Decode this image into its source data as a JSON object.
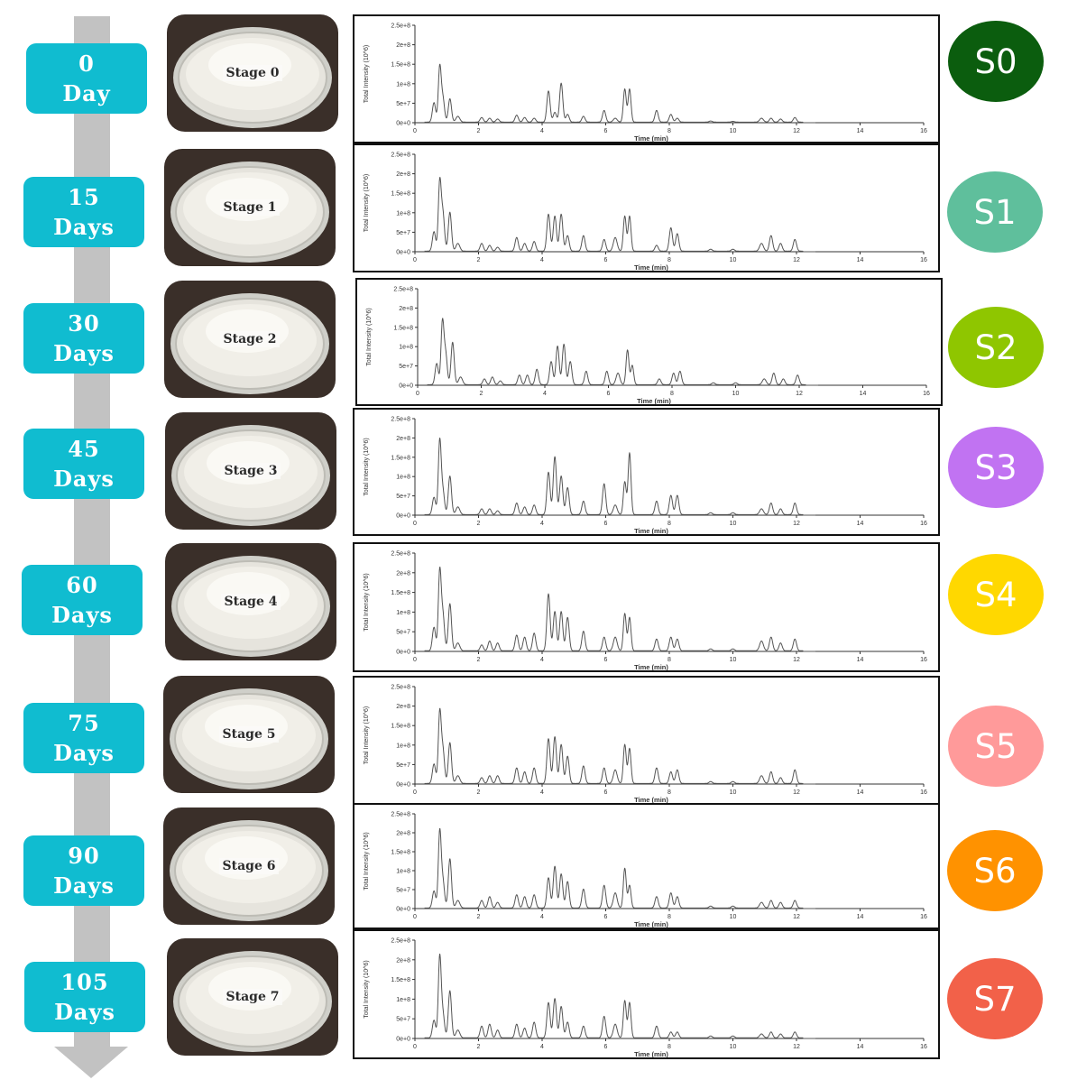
{
  "stages": [
    {
      "day_number": "0",
      "day_unit": "Day",
      "photo_label": "Stage 0",
      "series": "S0",
      "color": "#0b5d0e"
    },
    {
      "day_number": "15",
      "day_unit": "Days",
      "photo_label": "Stage 1",
      "series": "S1",
      "color": "#5fbf9c"
    },
    {
      "day_number": "30",
      "day_unit": "Days",
      "photo_label": "Stage 2",
      "series": "S2",
      "color": "#8fc600"
    },
    {
      "day_number": "45",
      "day_unit": "Days",
      "photo_label": "Stage 3",
      "series": "S3",
      "color": "#c173f2"
    },
    {
      "day_number": "60",
      "day_unit": "Days",
      "photo_label": "Stage 4",
      "series": "S4",
      "color": "#ffd800"
    },
    {
      "day_number": "75",
      "day_unit": "Days",
      "photo_label": "Stage 5",
      "series": "S5",
      "color": "#ff9a9a"
    },
    {
      "day_number": "90",
      "day_unit": "Days",
      "photo_label": "Stage 6",
      "series": "S6",
      "color": "#ff9200"
    },
    {
      "day_number": "105",
      "day_unit": "Days",
      "photo_label": "Stage 7",
      "series": "S7",
      "color": "#f26149"
    }
  ],
  "colors": {
    "badge": "#10bcd0",
    "arrow": "#c2c2c2"
  },
  "chart_data": {
    "type": "line",
    "xlabel": "Time (min)",
    "ylabel": "Total Intensity (10^6)",
    "xlim": [
      0,
      16
    ],
    "x_ticks": [
      "0",
      "2",
      "4",
      "6",
      "8",
      "10",
      "12",
      "14",
      "16"
    ],
    "ylim": [
      0,
      250000000
    ],
    "y_ticks": [
      "0e+0",
      "5e+7",
      "1e+8",
      "1.5e+8",
      "2e+8",
      "2.5e+8"
    ],
    "peaks": [
      {
        "x": 0.6,
        "w": 0.05
      },
      {
        "x": 0.78,
        "w": 0.045
      },
      {
        "x": 0.88,
        "w": 0.05
      },
      {
        "x": 1.1,
        "w": 0.05
      },
      {
        "x": 1.35,
        "w": 0.06
      },
      {
        "x": 2.1,
        "w": 0.05
      },
      {
        "x": 2.35,
        "w": 0.05
      },
      {
        "x": 2.6,
        "w": 0.05
      },
      {
        "x": 3.2,
        "w": 0.05
      },
      {
        "x": 3.45,
        "w": 0.05
      },
      {
        "x": 3.75,
        "w": 0.05
      },
      {
        "x": 4.2,
        "w": 0.05
      },
      {
        "x": 4.4,
        "w": 0.05
      },
      {
        "x": 4.6,
        "w": 0.05
      },
      {
        "x": 4.8,
        "w": 0.05
      },
      {
        "x": 5.3,
        "w": 0.05
      },
      {
        "x": 5.95,
        "w": 0.05
      },
      {
        "x": 6.3,
        "w": 0.06
      },
      {
        "x": 6.6,
        "w": 0.045
      },
      {
        "x": 6.75,
        "w": 0.045
      },
      {
        "x": 7.6,
        "w": 0.05
      },
      {
        "x": 8.05,
        "w": 0.05
      },
      {
        "x": 8.25,
        "w": 0.05
      },
      {
        "x": 9.3,
        "w": 0.05
      },
      {
        "x": 10.0,
        "w": 0.05
      },
      {
        "x": 10.9,
        "w": 0.06
      },
      {
        "x": 11.2,
        "w": 0.05
      },
      {
        "x": 11.5,
        "w": 0.05
      },
      {
        "x": 11.95,
        "w": 0.05
      }
    ],
    "series": [
      {
        "name": "S0",
        "values": [
          50000000.0,
          140000000.0,
          60000000.0,
          60000000.0,
          15000000.0,
          12000000.0,
          10000000.0,
          8000000.0,
          18000000.0,
          12000000.0,
          10000000.0,
          80000000.0,
          25000000.0,
          100000000.0,
          20000000.0,
          15000000.0,
          30000000.0,
          10000000.0,
          85000000.0,
          85000000.0,
          30000000.0,
          20000000.0,
          10000000.0,
          3000000.0,
          2000000.0,
          10000000.0,
          10000000.0,
          8000000.0,
          12000000.0
        ]
      },
      {
        "name": "S1",
        "values": [
          50000000.0,
          175000000.0,
          95000000.0,
          100000000.0,
          20000000.0,
          20000000.0,
          15000000.0,
          10000000.0,
          35000000.0,
          20000000.0,
          25000000.0,
          95000000.0,
          90000000.0,
          95000000.0,
          40000000.0,
          40000000.0,
          30000000.0,
          35000000.0,
          90000000.0,
          90000000.0,
          15000000.0,
          60000000.0,
          45000000.0,
          5000000.0,
          5000000.0,
          20000000.0,
          40000000.0,
          20000000.0,
          30000000.0
        ]
      },
      {
        "name": "S2",
        "values": [
          55000000.0,
          160000000.0,
          80000000.0,
          110000000.0,
          20000000.0,
          15000000.0,
          20000000.0,
          10000000.0,
          25000000.0,
          25000000.0,
          40000000.0,
          60000000.0,
          100000000.0,
          105000000.0,
          60000000.0,
          35000000.0,
          35000000.0,
          30000000.0,
          90000000.0,
          50000000.0,
          15000000.0,
          30000000.0,
          35000000.0,
          5000000.0,
          5000000.0,
          15000000.0,
          30000000.0,
          15000000.0,
          25000000.0
        ]
      },
      {
        "name": "S3",
        "values": [
          45000000.0,
          190000000.0,
          60000000.0,
          100000000.0,
          20000000.0,
          15000000.0,
          15000000.0,
          10000000.0,
          30000000.0,
          20000000.0,
          25000000.0,
          110000000.0,
          150000000.0,
          100000000.0,
          70000000.0,
          35000000.0,
          80000000.0,
          25000000.0,
          85000000.0,
          160000000.0,
          35000000.0,
          50000000.0,
          50000000.0,
          5000000.0,
          5000000.0,
          15000000.0,
          30000000.0,
          15000000.0,
          30000000.0
        ]
      },
      {
        "name": "S4",
        "values": [
          60000000.0,
          200000000.0,
          90000000.0,
          120000000.0,
          20000000.0,
          15000000.0,
          25000000.0,
          20000000.0,
          40000000.0,
          35000000.0,
          45000000.0,
          145000000.0,
          100000000.0,
          100000000.0,
          85000000.0,
          50000000.0,
          35000000.0,
          35000000.0,
          95000000.0,
          85000000.0,
          30000000.0,
          35000000.0,
          30000000.0,
          5000000.0,
          5000000.0,
          25000000.0,
          35000000.0,
          20000000.0,
          30000000.0
        ]
      },
      {
        "name": "S5",
        "values": [
          50000000.0,
          180000000.0,
          85000000.0,
          105000000.0,
          20000000.0,
          15000000.0,
          20000000.0,
          20000000.0,
          40000000.0,
          30000000.0,
          40000000.0,
          115000000.0,
          120000000.0,
          100000000.0,
          70000000.0,
          45000000.0,
          40000000.0,
          35000000.0,
          100000000.0,
          90000000.0,
          40000000.0,
          30000000.0,
          35000000.0,
          5000000.0,
          5000000.0,
          20000000.0,
          30000000.0,
          15000000.0,
          35000000.0
        ]
      },
      {
        "name": "S6",
        "values": [
          45000000.0,
          200000000.0,
          70000000.0,
          130000000.0,
          20000000.0,
          20000000.0,
          30000000.0,
          15000000.0,
          35000000.0,
          30000000.0,
          35000000.0,
          80000000.0,
          110000000.0,
          90000000.0,
          70000000.0,
          50000000.0,
          60000000.0,
          40000000.0,
          105000000.0,
          60000000.0,
          30000000.0,
          40000000.0,
          30000000.0,
          5000000.0,
          5000000.0,
          15000000.0,
          20000000.0,
          15000000.0,
          20000000.0
        ]
      },
      {
        "name": "S7",
        "values": [
          45000000.0,
          205000000.0,
          60000000.0,
          120000000.0,
          20000000.0,
          30000000.0,
          35000000.0,
          20000000.0,
          35000000.0,
          25000000.0,
          40000000.0,
          90000000.0,
          100000000.0,
          80000000.0,
          40000000.0,
          30000000.0,
          55000000.0,
          35000000.0,
          95000000.0,
          90000000.0,
          30000000.0,
          15000000.0,
          15000000.0,
          5000000.0,
          5000000.0,
          10000000.0,
          15000000.0,
          10000000.0,
          15000000.0
        ]
      }
    ]
  }
}
